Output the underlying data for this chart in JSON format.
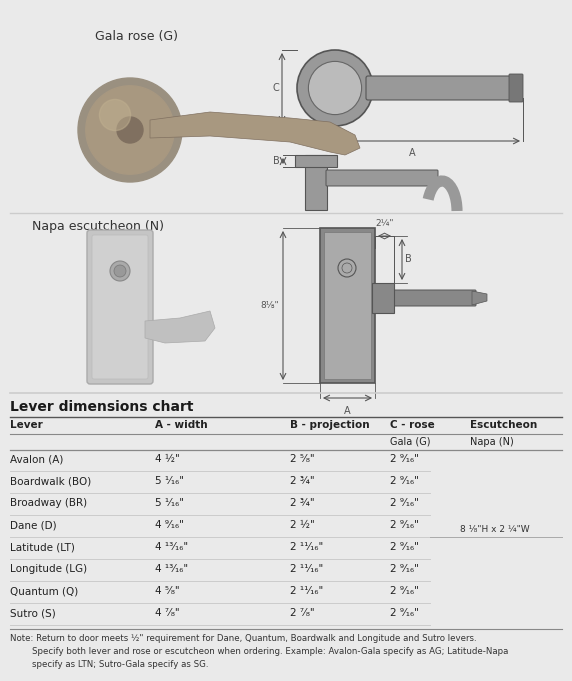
{
  "bg_color": "#eaeaea",
  "section1_label": "Gala rose (G)",
  "section2_label": "Napa escutcheon (N)",
  "chart_title": "Lever dimensions chart",
  "col_headers": [
    "Lever",
    "A - width",
    "B - projection",
    "C - rose",
    "Escutcheon"
  ],
  "sub_headers_gala": "Gala (G)",
  "sub_headers_napa": "Napa (N)",
  "rows": [
    [
      "Avalon (A)",
      "4 ½\"",
      "2 ⁵⁄₈\"",
      "2 ⁹⁄₁₆\""
    ],
    [
      "Boardwalk (BO)",
      "5 ¹⁄₁₆\"",
      "2 ¾\"",
      "2 ⁹⁄₁₆\""
    ],
    [
      "Broadway (BR)",
      "5 ¹⁄₁₆\"",
      "2 ¾\"",
      "2 ⁹⁄₁₆\""
    ],
    [
      "Dane (D)",
      "4 ⁹⁄₁₆\"",
      "2 ½\"",
      "2 ⁹⁄₁₆\""
    ],
    [
      "Latitude (LT)",
      "4 ¹³⁄₁₆\"",
      "2 ¹¹⁄₁₆\"",
      "2 ⁹⁄₁₆\""
    ],
    [
      "Longitude (LG)",
      "4 ¹³⁄₁₆\"",
      "2 ¹¹⁄₁₆\"",
      "2 ⁹⁄₁₆\""
    ],
    [
      "Quantum (Q)",
      "4 ⁵⁄₈\"",
      "2 ¹¹⁄₁₆\"",
      "2 ⁹⁄₁₆\""
    ],
    [
      "Sutro (S)",
      "4 ⁷⁄₈\"",
      "2 ⁷⁄₈\"",
      "2 ⁹⁄₁₆\""
    ]
  ],
  "escutcheon_note": "8 ¹⁄₈\"H x 2 ¼\"W",
  "note_line1": "Note: Return to door meets ½\" requirement for Dane, Quantum, Boardwalk and Longitude and Sutro levers.",
  "note_line2": "        Specify both lever and rose or escutcheon when ordering. Example: Avalon-Gala specify as AG; Latitude-Napa",
  "note_line3": "        specify as LTN; Sutro-Gala specify as SG.",
  "dark_gray": "#555555",
  "med_gray": "#888888",
  "light_gray": "#bbbbbb",
  "draw_color": "#777777",
  "text_dark": "#222222"
}
